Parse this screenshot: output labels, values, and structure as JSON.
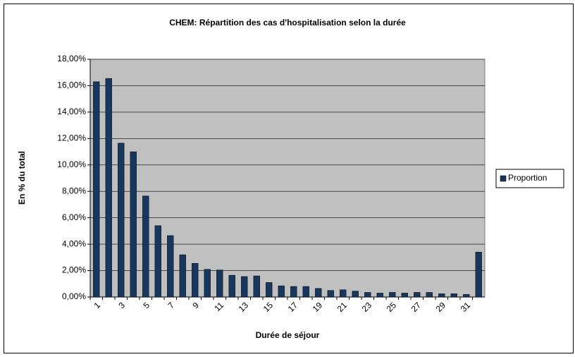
{
  "chart_data": {
    "type": "bar",
    "title": "CHEM: Répartition des cas d'hospitalisation selon la durée",
    "x_label": "Durée de séjour",
    "y_label": "En % du total",
    "categories": [
      "1",
      null,
      "3",
      null,
      "5",
      null,
      "7",
      null,
      "9",
      null,
      "11",
      null,
      "13",
      null,
      "15",
      null,
      "17",
      null,
      "19",
      null,
      "21",
      null,
      "23",
      null,
      "25",
      null,
      "27",
      null,
      "29",
      null,
      "31",
      null
    ],
    "series": [
      {
        "name": "Proportion",
        "color": "#17375e",
        "values": [
          16.3,
          16.55,
          11.65,
          11.0,
          7.65,
          5.4,
          4.65,
          3.2,
          2.55,
          2.1,
          2.05,
          1.65,
          1.55,
          1.6,
          1.1,
          0.85,
          0.8,
          0.8,
          0.65,
          0.5,
          0.55,
          0.45,
          0.35,
          0.3,
          0.35,
          0.3,
          0.35,
          0.35,
          0.25,
          0.25,
          0.2,
          3.4
        ]
      }
    ],
    "ylim": [
      0,
      18
    ],
    "yticks": [
      {
        "value": 0,
        "label": "0,00%"
      },
      {
        "value": 2,
        "label": "2,00%"
      },
      {
        "value": 4,
        "label": "4,00%"
      },
      {
        "value": 6,
        "label": "6,00%"
      },
      {
        "value": 8,
        "label": "8,00%"
      },
      {
        "value": 10,
        "label": "10,00%"
      },
      {
        "value": 12,
        "label": "12,00%"
      },
      {
        "value": 14,
        "label": "14,00%"
      },
      {
        "value": 16,
        "label": "16,00%"
      },
      {
        "value": 18,
        "label": "18,00%"
      }
    ],
    "grid": true,
    "legend": "right"
  }
}
